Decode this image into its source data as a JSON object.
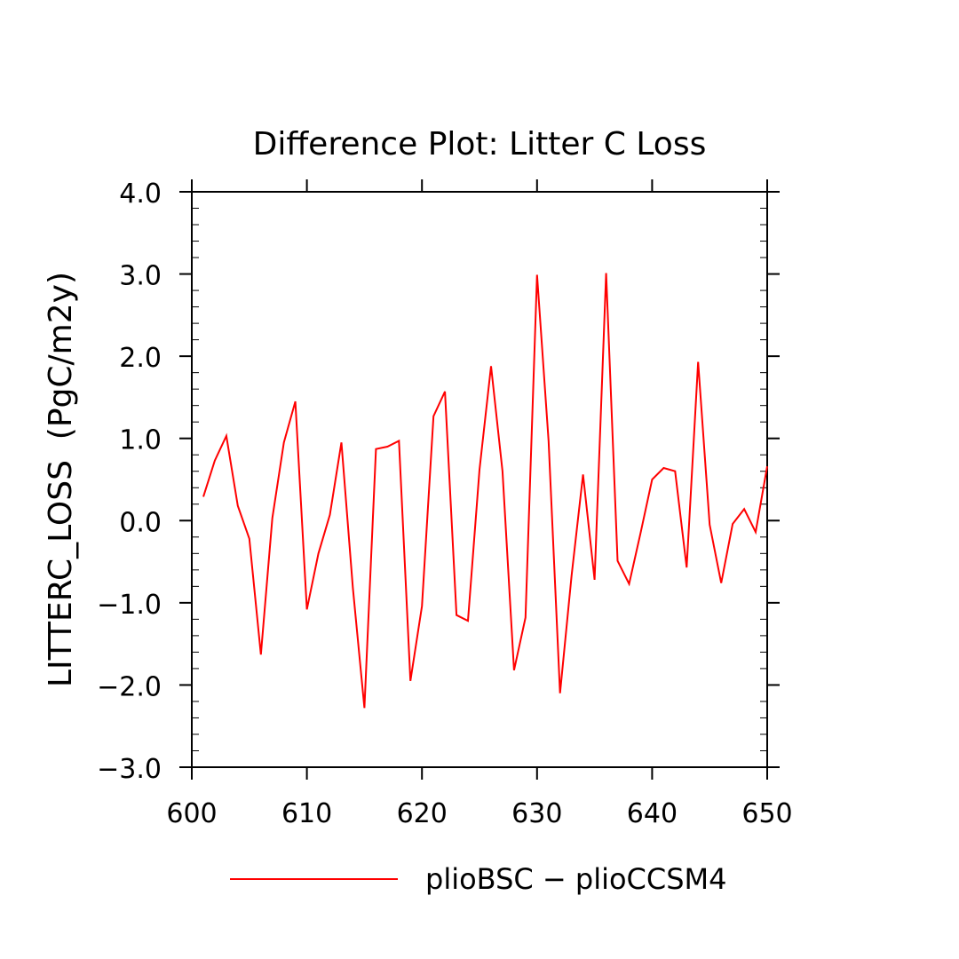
{
  "chart_data": {
    "type": "line",
    "title": "Difference Plot: Litter C Loss",
    "xlabel": "",
    "ylabel": "LITTERC_LOSS  (PgC/m2y)",
    "xlim": [
      600,
      650
    ],
    "ylim": [
      -3.0,
      4.0
    ],
    "x_ticks": [
      600,
      610,
      620,
      630,
      640,
      650
    ],
    "x_tick_labels": [
      "600",
      "610",
      "620",
      "630",
      "640",
      "650"
    ],
    "y_ticks": [
      -3.0,
      -2.0,
      -1.0,
      0.0,
      1.0,
      2.0,
      3.0,
      4.0
    ],
    "y_tick_labels": [
      "−3.0",
      "−2.0",
      "−1.0",
      "0.0",
      "1.0",
      "2.0",
      "3.0",
      "4.0"
    ],
    "grid": false,
    "legend_position": "bottom",
    "series": [
      {
        "name": "plioBSC − plioCCSM4",
        "color": "#ff0000",
        "x": [
          601,
          602,
          603,
          604,
          605,
          606,
          607,
          608,
          609,
          610,
          611,
          612,
          613,
          614,
          615,
          616,
          617,
          618,
          619,
          620,
          621,
          622,
          623,
          624,
          625,
          626,
          627,
          628,
          629,
          630,
          631,
          632,
          633,
          634,
          635,
          636,
          637,
          638,
          639,
          640,
          641,
          642,
          643,
          644,
          645,
          646,
          647,
          648,
          649,
          650
        ],
        "values": [
          0.29,
          0.73,
          1.03,
          0.18,
          -0.22,
          -1.63,
          0.03,
          0.95,
          1.45,
          -1.08,
          -0.4,
          0.07,
          0.95,
          -0.82,
          -2.28,
          0.87,
          0.9,
          0.97,
          -1.95,
          -1.04,
          1.27,
          1.57,
          -1.15,
          -1.22,
          0.62,
          1.88,
          0.6,
          -1.82,
          -1.18,
          2.99,
          0.97,
          -2.1,
          -0.67,
          0.56,
          -0.72,
          3.01,
          -0.49,
          -0.77,
          -0.15,
          0.5,
          0.64,
          0.6,
          -0.57,
          1.93,
          -0.05,
          -0.76,
          -0.04,
          0.14,
          -0.14,
          0.66
        ]
      }
    ]
  }
}
